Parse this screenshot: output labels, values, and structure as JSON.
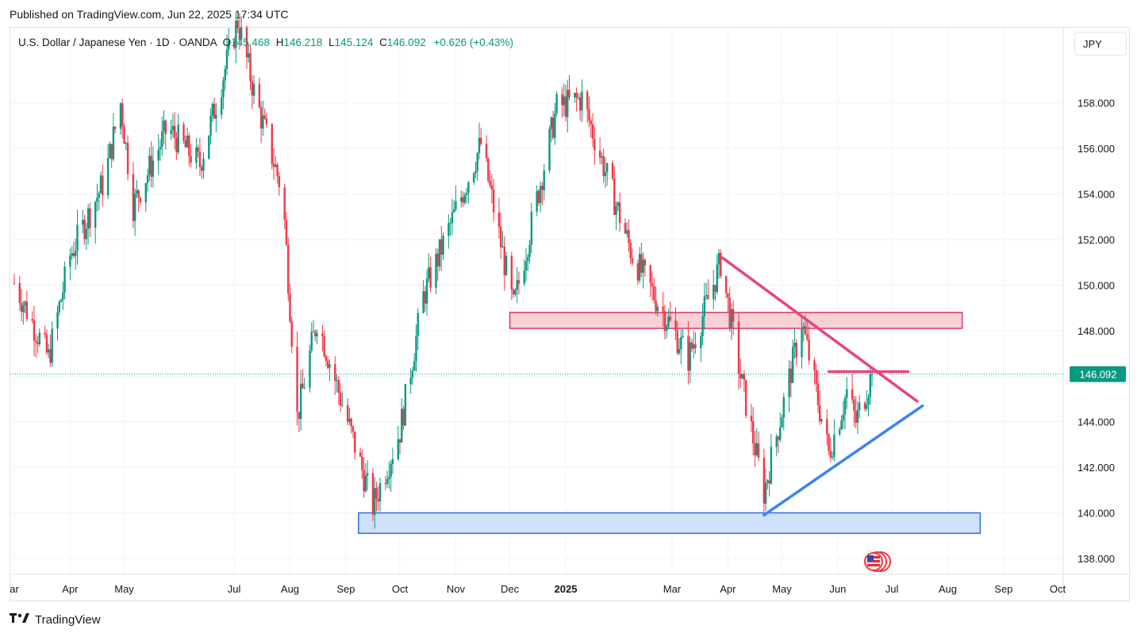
{
  "header": {
    "published": "Published on TradingView.com, Jun 22, 2025 17:34 UTC"
  },
  "legend": {
    "symbol": "U.S. Dollar / Japanese Yen · 1D · OANDA",
    "o_label": "O",
    "o_value": "145.468",
    "h_label": "H",
    "h_value": "146.218",
    "l_label": "L",
    "l_value": "145.124",
    "c_label": "C",
    "c_value": "146.092",
    "change": "+0.626 (+0.43%)"
  },
  "currency_button": "JPY",
  "branding": {
    "name": "TradingView"
  },
  "colors": {
    "up": "#089981",
    "down": "#f23645",
    "price_badge": "#089981",
    "trend_pink": "#e8457c",
    "trend_blue": "#3b82f6",
    "resistance_fill": "#f8d0d7",
    "resistance_border": "#e0365f",
    "support_fill": "#cfe0fb",
    "support_border": "#2f6fe4"
  },
  "chart_data": {
    "type": "candlestick",
    "ylim": [
      137.3,
      161.3
    ],
    "y_ticks": [
      "138.000",
      "140.000",
      "142.000",
      "144.000",
      "146.000",
      "148.000",
      "150.000",
      "152.000",
      "154.000",
      "156.000",
      "158.000"
    ],
    "x_ticks": [
      "ar",
      "Apr",
      "May",
      "Jul",
      "Aug",
      "Sep",
      "Oct",
      "Nov",
      "Dec",
      "2025",
      "Mar",
      "Apr",
      "May",
      "Jun",
      "Jul",
      "Aug",
      "Sep",
      "Oct"
    ],
    "x_tick_dates": [
      "2024-03-01",
      "2024-04-01",
      "2024-05-01",
      "2024-07-01",
      "2024-08-01",
      "2024-09-01",
      "2024-10-01",
      "2024-11-01",
      "2024-12-01",
      "2025-01-01",
      "2025-03-01",
      "2025-04-01",
      "2025-05-01",
      "2025-06-01",
      "2025-07-01",
      "2025-08-01",
      "2025-09-01",
      "2025-10-01"
    ],
    "last_price": "146.092",
    "last_price_value": 146.092,
    "path_points": [
      {
        "date": "2024-03-01",
        "price": 150.1
      },
      {
        "date": "2024-03-20",
        "price": 146.8
      },
      {
        "date": "2024-04-01",
        "price": 151.3
      },
      {
        "date": "2024-04-20",
        "price": 154.6
      },
      {
        "date": "2024-04-29",
        "price": 158.0
      },
      {
        "date": "2024-05-06",
        "price": 153.5
      },
      {
        "date": "2024-05-25",
        "price": 156.9
      },
      {
        "date": "2024-06-12",
        "price": 155.3
      },
      {
        "date": "2024-07-03",
        "price": 161.6
      },
      {
        "date": "2024-07-12",
        "price": 158.5
      },
      {
        "date": "2024-07-28",
        "price": 154.0
      },
      {
        "date": "2024-08-05",
        "price": 144.2
      },
      {
        "date": "2024-08-16",
        "price": 148.5
      },
      {
        "date": "2024-09-16",
        "price": 140.3
      },
      {
        "date": "2024-10-01",
        "price": 143.6
      },
      {
        "date": "2024-10-14",
        "price": 149.5
      },
      {
        "date": "2024-11-15",
        "price": 156.2
      },
      {
        "date": "2024-12-03",
        "price": 149.0
      },
      {
        "date": "2024-12-27",
        "price": 157.8
      },
      {
        "date": "2025-01-10",
        "price": 158.2
      },
      {
        "date": "2025-02-07",
        "price": 151.3
      },
      {
        "date": "2025-03-10",
        "price": 146.8
      },
      {
        "date": "2025-03-28",
        "price": 151.0
      },
      {
        "date": "2025-04-08",
        "price": 146.0
      },
      {
        "date": "2025-04-21",
        "price": 140.9
      },
      {
        "date": "2025-05-12",
        "price": 148.4
      },
      {
        "date": "2025-05-27",
        "price": 142.6
      },
      {
        "date": "2025-06-06",
        "price": 145.3
      },
      {
        "date": "2025-06-11",
        "price": 144.0
      },
      {
        "date": "2025-06-20",
        "price": 146.09
      }
    ],
    "drawings": {
      "resistance_zone": {
        "from": "2024-12-01",
        "to": "2025-08-09",
        "low": 148.1,
        "high": 148.8
      },
      "support_zone": {
        "from": "2024-09-08",
        "to": "2025-08-19",
        "low": 139.1,
        "high": 140.0
      },
      "descending_trendline": {
        "from": {
          "date": "2025-03-29",
          "price": 151.2
        },
        "to": {
          "date": "2025-07-15",
          "price": 144.9
        }
      },
      "ascending_trendline": {
        "from": {
          "date": "2025-04-21",
          "price": 139.9
        },
        "to": {
          "date": "2025-07-18",
          "price": 144.7
        }
      },
      "horizontal_line": {
        "from": "2025-05-27",
        "to": "2025-07-10",
        "price": 146.2
      }
    }
  }
}
